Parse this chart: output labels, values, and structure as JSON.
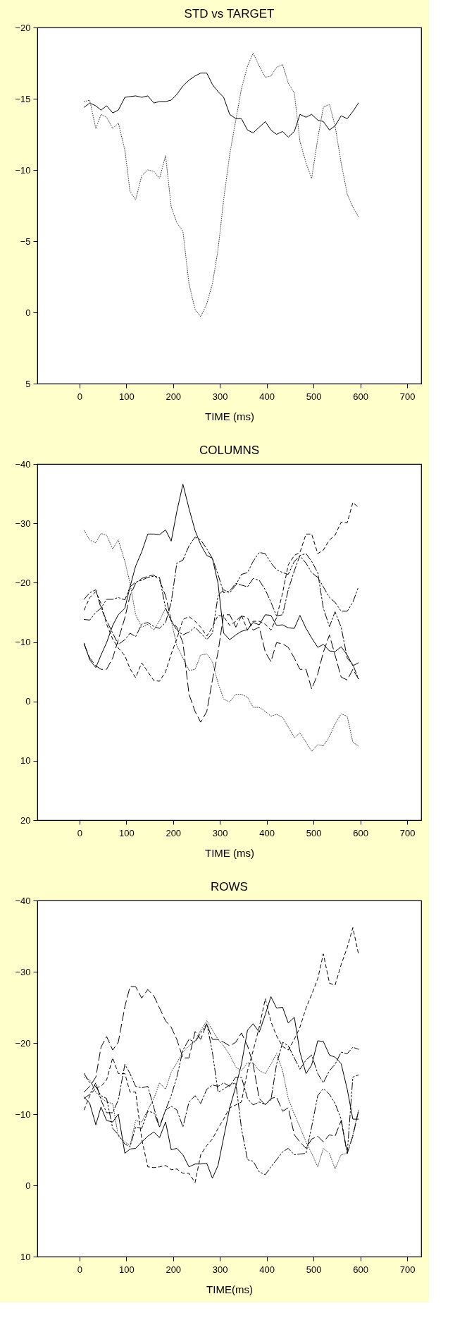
{
  "chart_data": [
    {
      "type": "line",
      "title": "STD vs TARGET",
      "xlabel": "TIME (ms)",
      "xlim": [
        -90,
        730
      ],
      "xticks": [
        0,
        100,
        200,
        300,
        400,
        500,
        600,
        700
      ],
      "ylim": [
        5,
        -20
      ],
      "yticks": [
        -20,
        -15,
        -10,
        -5,
        0,
        5
      ],
      "grid": false,
      "x": [
        10,
        22,
        35,
        46,
        58,
        71,
        83,
        97,
        108,
        120,
        133,
        146,
        159,
        171,
        184,
        196,
        208,
        221,
        234,
        247,
        259,
        272,
        284,
        296,
        308,
        321,
        334,
        346,
        359,
        371,
        384,
        397,
        409,
        421,
        434,
        446,
        459,
        471,
        484,
        496,
        509,
        521,
        534,
        546,
        559,
        572,
        584,
        596
      ],
      "series": [
        {
          "color": "#000000",
          "line_style": "solid",
          "values": [
            -14.4,
            -14.7,
            -14.5,
            -14.2,
            -14.5,
            -14.0,
            -14.2,
            -15.1,
            -15.15,
            -15.2,
            -15.1,
            -15.2,
            -14.7,
            -14.8,
            -14.8,
            -14.9,
            -15.3,
            -15.9,
            -16.3,
            -16.6,
            -16.8,
            -16.8,
            -16.0,
            -15.5,
            -15.1,
            -13.9,
            -13.6,
            -13.6,
            -12.8,
            -12.6,
            -13.0,
            -13.4,
            -12.8,
            -12.5,
            -12.7,
            -12.3,
            -12.7,
            -13.9,
            -13.7,
            -13.9,
            -13.5,
            -13.4,
            -12.8,
            -13.1,
            -13.8,
            -13.6,
            -14.1,
            -14.7
          ]
        },
        {
          "color": "#444444",
          "line_style": "dotted",
          "values": [
            -14.8,
            -14.9,
            -12.9,
            -13.9,
            -13.7,
            -12.9,
            -13.3,
            -11.4,
            -8.5,
            -7.9,
            -9.6,
            -10.0,
            -9.9,
            -9.4,
            -11.0,
            -7.4,
            -6.3,
            -5.7,
            -2.0,
            -0.2,
            0.3,
            -0.6,
            -2.0,
            -4.4,
            -7.9,
            -11.1,
            -13.5,
            -15.7,
            -17.3,
            -18.2,
            -17.3,
            -16.5,
            -16.6,
            -17.2,
            -17.4,
            -16.1,
            -15.4,
            -12.0,
            -10.5,
            -9.4,
            -12.2,
            -14.4,
            -14.6,
            -13.1,
            -10.5,
            -8.3,
            -7.4,
            -6.7
          ]
        }
      ]
    },
    {
      "type": "line",
      "title": "COLUMNS",
      "xlabel": "TIME (ms)",
      "xlim": [
        -90,
        730
      ],
      "xticks": [
        0,
        100,
        200,
        300,
        400,
        500,
        600,
        700
      ],
      "ylim": [
        20,
        -40
      ],
      "yticks": [
        -40,
        -30,
        -20,
        -10,
        0,
        10,
        20
      ],
      "grid": false,
      "x": [
        10,
        22,
        35,
        46,
        58,
        71,
        83,
        97,
        108,
        120,
        133,
        146,
        159,
        171,
        184,
        196,
        208,
        221,
        234,
        247,
        259,
        272,
        284,
        296,
        308,
        321,
        334,
        346,
        359,
        371,
        384,
        397,
        409,
        421,
        434,
        446,
        459,
        471,
        484,
        496,
        509,
        521,
        534,
        546,
        559,
        572,
        584,
        596
      ],
      "series": [
        {
          "color": "#000000",
          "line_style": "solid",
          "values": [
            -9.8,
            -7.0,
            -5.7,
            -7.8,
            -9.9,
            -12.8,
            -14.6,
            -15.7,
            -19.3,
            -22.8,
            -25.2,
            -28.2,
            -28.2,
            -28.1,
            -28.9,
            -27.0,
            -32.0,
            -36.6,
            -32.5,
            -28.8,
            -26.4,
            -24.6,
            -24.1,
            -19.9,
            -11.5,
            -10.4,
            -11.2,
            -11.8,
            -12.1,
            -13.3,
            -12.9,
            -14.6,
            -14.5,
            -12.8,
            -12.9,
            -12.4,
            -12.3,
            -14.5,
            -12.3,
            -10.7,
            -9.1,
            -9.6,
            -8.5,
            -8.4,
            -9.2,
            -7.8,
            -6.0,
            -6.5
          ]
        },
        {
          "color": "#444444",
          "line_style": "dotted",
          "values": [
            -28.8,
            -27.2,
            -26.7,
            -28.3,
            -28.0,
            -25.7,
            -27.2,
            -23.6,
            -19.9,
            -14.6,
            -12.5,
            -13.0,
            -12.0,
            -13.6,
            -15.7,
            -13.6,
            -9.4,
            -7.3,
            -5.2,
            -5.4,
            -7.8,
            -8.0,
            -6.7,
            -3.1,
            -0.4,
            0.1,
            -1.2,
            -1.2,
            -0.7,
            1.0,
            1.0,
            1.7,
            2.5,
            2.2,
            2.7,
            4.3,
            6.1,
            5.3,
            6.9,
            8.4,
            7.3,
            7.5,
            5.9,
            3.8,
            2.1,
            2.5,
            6.9,
            7.5
          ]
        },
        {
          "color": "#000000",
          "line_style": "dashed",
          "values": [
            -15.4,
            -17.5,
            -18.5,
            -16.5,
            -13.0,
            -10.5,
            -9.0,
            -7.7,
            -5.5,
            -4.0,
            -6.5,
            -5.0,
            -3.5,
            -3.4,
            -5.0,
            -8.0,
            -10.5,
            -13.8,
            -14.3,
            -13.5,
            -12.5,
            -11.0,
            -12.5,
            -14.5,
            -14.3,
            -12.8,
            -13.5,
            -14.5,
            -12.0,
            -13.5,
            -13.5,
            -13.0,
            -12.0,
            -14.1,
            -18.3,
            -23.0,
            -24.6,
            -25.1,
            -28.2,
            -28.2,
            -24.9,
            -25.5,
            -27.2,
            -28.0,
            -30.2,
            -30.1,
            -33.5,
            -32.7
          ]
        },
        {
          "color": "#000000",
          "line_style": "dashed",
          "values": [
            -9.6,
            -7.3,
            -6.0,
            -5.4,
            -5.4,
            -7.3,
            -10.4,
            -14.1,
            -17.8,
            -19.9,
            -20.7,
            -21.1,
            -21.3,
            -20.4,
            -17.8,
            -13.6,
            -12.5,
            -9.9,
            -1.2,
            1.7,
            3.5,
            1.7,
            -3.6,
            -8.3,
            -14.6,
            -14.6,
            -12.5,
            -14.4,
            -14.1,
            -12.0,
            -12.5,
            -8.3,
            -6.7,
            -9.9,
            -9.7,
            -9.1,
            -7.3,
            -5.4,
            -5.4,
            -2.1,
            -4.6,
            -8.3,
            -11.2,
            -7.8,
            -4.1,
            -3.6,
            -5.4,
            -3.8
          ]
        },
        {
          "color": "#000000",
          "line_style": "dashed",
          "values": [
            -17.2,
            -18.3,
            -18.8,
            -15.7,
            -13.6,
            -11.5,
            -9.6,
            -10.4,
            -11.5,
            -10.9,
            -13.0,
            -13.3,
            -12.6,
            -12.3,
            -13.3,
            -16.7,
            -23.3,
            -23.8,
            -26.2,
            -27.7,
            -27.2,
            -25.7,
            -24.1,
            -21.4,
            -18.3,
            -18.6,
            -19.9,
            -19.6,
            -19.3,
            -20.7,
            -20.4,
            -18.8,
            -16.7,
            -14.4,
            -14.6,
            -18.8,
            -22.0,
            -24.6,
            -24.9,
            -23.6,
            -21.7,
            -15.7,
            -12.6,
            -15.1,
            -12.5,
            -7.3,
            -6.2,
            -3.8
          ]
        },
        {
          "color": "#000000",
          "line_style": "dashed",
          "values": [
            -13.8,
            -13.7,
            -15.0,
            -15.7,
            -17.2,
            -17.2,
            -17.5,
            -17.1,
            -19.3,
            -20.1,
            -20.4,
            -20.9,
            -21.1,
            -20.9,
            -15.7,
            -13.6,
            -12.0,
            -11.2,
            -11.7,
            -12.5,
            -11.5,
            -10.4,
            -11.5,
            -17.8,
            -18.8,
            -18.3,
            -19.6,
            -21.4,
            -21.7,
            -23.6,
            -25.1,
            -24.9,
            -23.3,
            -22.2,
            -21.7,
            -21.4,
            -23.6,
            -24.5,
            -23.3,
            -21.7,
            -20.9,
            -19.3,
            -17.5,
            -16.7,
            -15.2,
            -15.2,
            -16.7,
            -19.3
          ]
        }
      ]
    },
    {
      "type": "line",
      "title": "ROWS",
      "xlabel": "TIME(ms)",
      "xlim": [
        -90,
        730
      ],
      "xticks": [
        0,
        100,
        200,
        300,
        400,
        500,
        600,
        700
      ],
      "ylim": [
        10,
        -40
      ],
      "yticks": [
        -40,
        -30,
        -20,
        -10,
        0,
        10
      ],
      "grid": false,
      "x": [
        10,
        22,
        35,
        46,
        58,
        71,
        83,
        97,
        108,
        120,
        133,
        146,
        159,
        171,
        184,
        196,
        208,
        221,
        234,
        247,
        259,
        272,
        284,
        296,
        308,
        321,
        334,
        346,
        359,
        371,
        384,
        397,
        409,
        421,
        434,
        446,
        459,
        471,
        484,
        496,
        509,
        521,
        534,
        546,
        559,
        572,
        584,
        596
      ],
      "series": [
        {
          "color": "#000000",
          "line_style": "solid",
          "values": [
            -12.4,
            -11.5,
            -8.5,
            -11.0,
            -9.1,
            -8.9,
            -10.0,
            -4.5,
            -5.1,
            -5.2,
            -6.1,
            -6.9,
            -7.5,
            -6.7,
            -8.9,
            -5.0,
            -5.2,
            -4.3,
            -2.6,
            -3.0,
            -3.0,
            -3.1,
            -1.0,
            -2.8,
            -6.7,
            -10.9,
            -13.9,
            -17.0,
            -21.8,
            -22.7,
            -21.5,
            -24.0,
            -26.5,
            -24.9,
            -25.0,
            -22.8,
            -23.6,
            -18.7,
            -15.7,
            -16.9,
            -20.3,
            -20.2,
            -18.3,
            -18.0,
            -17.1,
            -13.5,
            -9.3,
            -9.3
          ]
        },
        {
          "color": "#444444",
          "line_style": "dotted",
          "values": [
            -15.2,
            -14.8,
            -13.1,
            -12.3,
            -11.7,
            -11.5,
            -6.9,
            -6.1,
            -5.6,
            -9.1,
            -8.9,
            -10.6,
            -12.2,
            -14.4,
            -13.5,
            -15.9,
            -17.2,
            -18.7,
            -19.6,
            -20.3,
            -21.8,
            -23.1,
            -21.8,
            -20.5,
            -19.6,
            -18.3,
            -16.6,
            -16.1,
            -17.2,
            -17.2,
            -16.1,
            -15.7,
            -17.0,
            -18.5,
            -16.1,
            -12.2,
            -10.0,
            -8.2,
            -6.1,
            -4.5,
            -2.6,
            -5.2,
            -4.5,
            -2.3,
            -4.3,
            -4.5,
            -7.1,
            -10.6
          ]
        },
        {
          "color": "#000000",
          "line_style": "dashed",
          "values": [
            -10.6,
            -12.6,
            -13.7,
            -13.9,
            -14.8,
            -17.9,
            -15.7,
            -15.7,
            -13.1,
            -13.1,
            -6.5,
            -2.6,
            -2.5,
            -2.6,
            -2.8,
            -2.2,
            -2.3,
            -1.7,
            -1.7,
            -0.4,
            -4.3,
            -5.6,
            -6.5,
            -8.0,
            -9.3,
            -10.9,
            -11.3,
            -11.7,
            -16.1,
            -18.9,
            -22.2,
            -26.2,
            -23.0,
            -21.0,
            -19.5,
            -19.0,
            -20.5,
            -22.2,
            -24.9,
            -26.8,
            -29.0,
            -32.5,
            -28.4,
            -28.1,
            -31.0,
            -33.4,
            -36.2,
            -32.5
          ]
        },
        {
          "color": "#000000",
          "line_style": "dashed",
          "values": [
            -13.1,
            -13.9,
            -15.2,
            -19.4,
            -20.9,
            -19.0,
            -20.1,
            -25.1,
            -27.9,
            -27.9,
            -26.3,
            -27.5,
            -26.6,
            -24.9,
            -23.1,
            -22.2,
            -20.5,
            -17.9,
            -17.9,
            -21.6,
            -20.5,
            -22.7,
            -20.5,
            -20.5,
            -20.1,
            -19.6,
            -20.1,
            -21.4,
            -19.6,
            -17.0,
            -12.2,
            -11.3,
            -12.2,
            -12.4,
            -10.4,
            -10.9,
            -7.1,
            -6.1,
            -5.2,
            -6.5,
            -6.9,
            -6.1,
            -7.1,
            -6.9,
            -9.1,
            -4.5,
            -6.9,
            -10.4
          ]
        },
        {
          "color": "#000000",
          "line_style": "dashed",
          "values": [
            -12.2,
            -12.8,
            -14.4,
            -12.0,
            -10.2,
            -10.2,
            -12.0,
            -17.0,
            -15.7,
            -13.9,
            -13.7,
            -13.9,
            -10.9,
            -8.2,
            -10.6,
            -11.1,
            -10.6,
            -8.2,
            -11.7,
            -12.6,
            -11.5,
            -13.5,
            -14.1,
            -13.9,
            -14.4,
            -13.9,
            -15.2,
            -15.2,
            -12.2,
            -11.3,
            -11.7,
            -11.4,
            -12.0,
            -17.0,
            -20.1,
            -19.6,
            -17.9,
            -16.3,
            -17.6,
            -18.3,
            -15.7,
            -14.4,
            -16.1,
            -17.0,
            -18.7,
            -18.5,
            -19.4,
            -19.1
          ]
        },
        {
          "color": "#000000",
          "line_style": "dashed",
          "values": [
            -15.7,
            -14.4,
            -13.9,
            -12.6,
            -12.2,
            -8.0,
            -7.1,
            -5.8,
            -5.4,
            -8.2,
            -8.0,
            -10.4,
            -10.2,
            -8.2,
            -10.6,
            -12.6,
            -15.2,
            -19.0,
            -20.5,
            -20.1,
            -21.4,
            -22.7,
            -18.7,
            -13.1,
            -13.5,
            -14.1,
            -14.4,
            -8.0,
            -3.6,
            -3.4,
            -1.9,
            -1.5,
            -2.6,
            -3.6,
            -4.7,
            -5.2,
            -4.3,
            -4.4,
            -4.5,
            -8.2,
            -12.6,
            -13.6,
            -12.8,
            -11.5,
            -9.3,
            -4.5,
            -15.2,
            -15.5
          ]
        }
      ]
    }
  ]
}
